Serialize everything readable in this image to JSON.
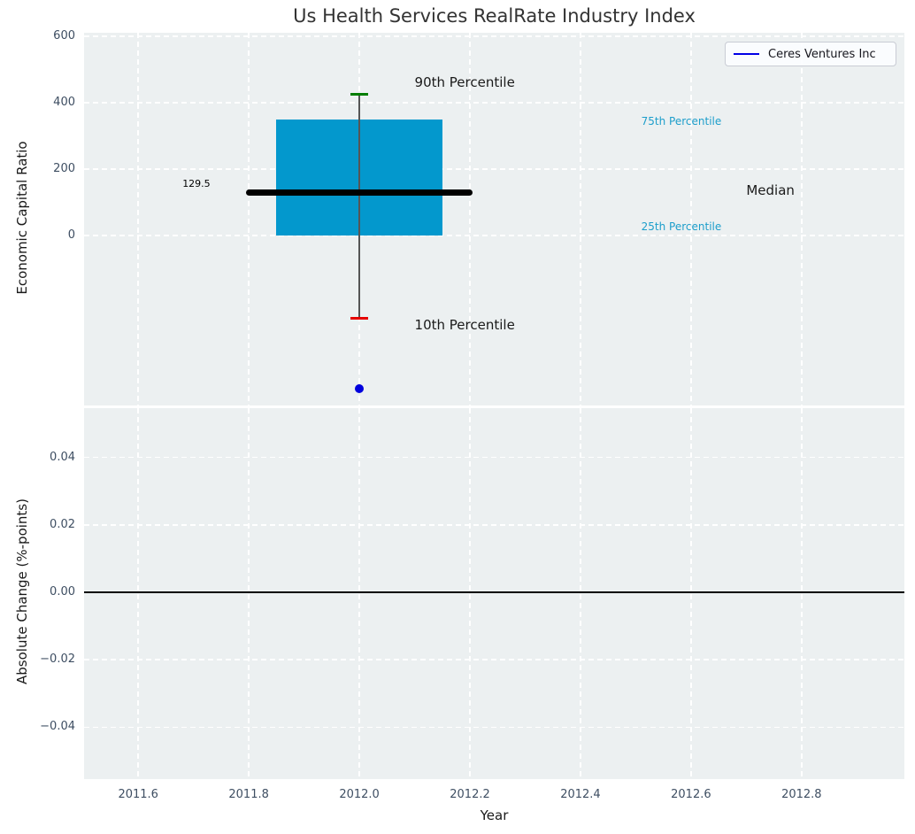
{
  "figure": {
    "title": "Us Health Services RealRate Industry Index",
    "background": "#ffffff",
    "plot_background": "#ecf0f1",
    "grid_color": "#ffffff",
    "tick_color": "#3e4e62"
  },
  "legend": {
    "label": "Ceres Ventures Inc",
    "line_color": "#0000e6"
  },
  "chart_data": [
    {
      "type": "boxplot",
      "title": "Us Health Services RealRate Industry Index",
      "ylabel": "Economic Capital Ratio",
      "xlim": [
        2011.502,
        2012.986
      ],
      "ylim": [
        -512,
        611
      ],
      "grid": true,
      "yticks": {
        "values": [
          600,
          400,
          200,
          0
        ],
        "labels": [
          "600",
          "400",
          "200",
          "0"
        ]
      },
      "xticks": {
        "values": [
          2011.6,
          2011.8,
          2012.0,
          2012.2,
          2012.4,
          2012.6,
          2012.8
        ],
        "labels": [
          "2011.6",
          "2011.8",
          "2012.0",
          "2012.2",
          "2012.4",
          "2012.6",
          "2012.8"
        ],
        "show_labels": false
      },
      "box": {
        "x": 2012.0,
        "half_width": 0.15,
        "q1": 0,
        "q3": 350,
        "median": 129.5,
        "median_label": "129.5",
        "median_half_width": 0.205,
        "whisker_high_p90": 425,
        "whisker_low_p10": -248,
        "cap_half_width": 0.0165,
        "box_color": "#0398cd",
        "median_color": "#000000",
        "whisker_color": "#555555",
        "cap_high_color": "#007d00",
        "cap_low_color": "#e60000"
      },
      "company_point": {
        "name": "Ceres Ventures Inc",
        "x": 2012.0,
        "y": -460,
        "color": "#0000dd",
        "radius": 5
      },
      "annotations": [
        {
          "text": "90th Percentile",
          "x": 2012.1,
          "y": 455,
          "color": "#1a1a1a",
          "size": 15
        },
        {
          "text": "75th Percentile",
          "x": 2012.51,
          "y": 336,
          "color": "#1d9ecb",
          "size": 12
        },
        {
          "text": "Median",
          "x": 2012.7,
          "y": 128,
          "color": "#1a1a1a",
          "size": 15
        },
        {
          "text": "129.5",
          "x": 2011.68,
          "y": 150,
          "color": "#000000",
          "size": 11
        },
        {
          "text": "25th Percentile",
          "x": 2012.51,
          "y": 21,
          "color": "#1d9ecb",
          "size": 12
        },
        {
          "text": "10th Percentile",
          "x": 2012.1,
          "y": -277,
          "color": "#1a1a1a",
          "size": 15
        }
      ]
    },
    {
      "type": "line",
      "ylabel": "Absolute Change (%-points)",
      "xlabel": "Year",
      "xlim": [
        2011.502,
        2012.986
      ],
      "ylim": [
        -0.0554,
        0.0546
      ],
      "grid": true,
      "yticks": {
        "values": [
          0.04,
          0.02,
          0.0,
          -0.02,
          -0.04
        ],
        "labels": [
          "0.04",
          "0.02",
          "0.00",
          "−0.02",
          "−0.04"
        ]
      },
      "xticks": {
        "values": [
          2011.6,
          2011.8,
          2012.0,
          2012.2,
          2012.4,
          2012.6,
          2012.8
        ],
        "labels": [
          "2011.6",
          "2011.8",
          "2012.0",
          "2012.2",
          "2012.4",
          "2012.6",
          "2012.8"
        ],
        "show_labels": true
      },
      "zero_line": 0.0
    }
  ]
}
